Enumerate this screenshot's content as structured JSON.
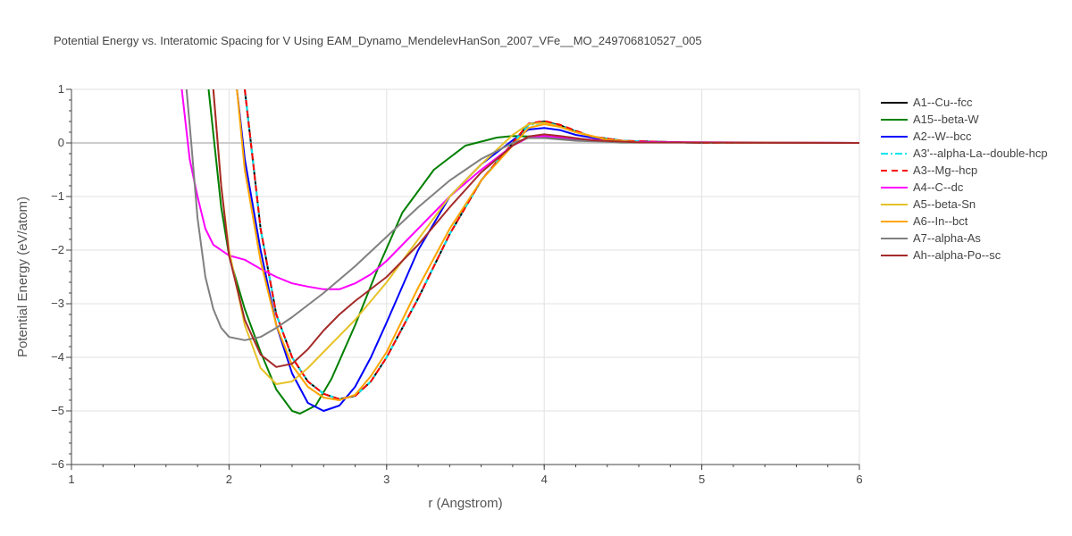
{
  "chart_data": {
    "type": "line",
    "title": "Potential Energy vs. Interatomic Spacing for V Using EAM_Dynamo_MendelevHanSon_2007_VFe__MO_249706810527_005",
    "xlabel": "r (Angstrom)",
    "ylabel": "Potential Energy (eV/atom)",
    "xlim": [
      1,
      6
    ],
    "ylim": [
      -6,
      1
    ],
    "xticks": [
      1,
      2,
      3,
      4,
      5,
      6
    ],
    "yticks": [
      -6,
      -5,
      -4,
      -3,
      -2,
      -1,
      0,
      1
    ],
    "xtick_labels": [
      "1",
      "2",
      "3",
      "4",
      "5",
      "6"
    ],
    "ytick_labels": [
      "−6",
      "−5",
      "−4",
      "−3",
      "−2",
      "−1",
      "0",
      "1"
    ],
    "grid": true,
    "legend_position": "right",
    "series": [
      {
        "name": "A1--Cu--fcc",
        "color": "#000000",
        "dash": "solid",
        "points": [
          [
            2.1,
            1.0
          ],
          [
            2.15,
            -0.3
          ],
          [
            2.2,
            -1.6
          ],
          [
            2.3,
            -3.2
          ],
          [
            2.4,
            -4.0
          ],
          [
            2.5,
            -4.45
          ],
          [
            2.6,
            -4.68
          ],
          [
            2.7,
            -4.78
          ],
          [
            2.8,
            -4.72
          ],
          [
            2.9,
            -4.45
          ],
          [
            3.0,
            -4.0
          ],
          [
            3.2,
            -2.9
          ],
          [
            3.4,
            -1.7
          ],
          [
            3.6,
            -0.7
          ],
          [
            3.8,
            0.0
          ],
          [
            3.9,
            0.35
          ],
          [
            4.0,
            0.4
          ],
          [
            4.1,
            0.33
          ],
          [
            4.2,
            0.22
          ],
          [
            4.3,
            0.12
          ],
          [
            4.5,
            0.04
          ],
          [
            5.0,
            0.0
          ],
          [
            6.0,
            0.0
          ]
        ]
      },
      {
        "name": "A15--beta-W",
        "color": "#008000",
        "dash": "solid",
        "points": [
          [
            1.87,
            1.0
          ],
          [
            1.95,
            -1.2
          ],
          [
            2.0,
            -2.1
          ],
          [
            2.1,
            -3.1
          ],
          [
            2.2,
            -3.9
          ],
          [
            2.3,
            -4.6
          ],
          [
            2.4,
            -5.0
          ],
          [
            2.45,
            -5.05
          ],
          [
            2.55,
            -4.9
          ],
          [
            2.65,
            -4.4
          ],
          [
            2.8,
            -3.4
          ],
          [
            2.95,
            -2.3
          ],
          [
            3.1,
            -1.3
          ],
          [
            3.3,
            -0.5
          ],
          [
            3.5,
            -0.05
          ],
          [
            3.7,
            0.1
          ],
          [
            3.8,
            0.13
          ],
          [
            3.9,
            0.12
          ],
          [
            4.0,
            0.1
          ],
          [
            4.2,
            0.05
          ],
          [
            4.5,
            0.01
          ],
          [
            6.0,
            0.0
          ]
        ]
      },
      {
        "name": "A2--W--bcc",
        "color": "#0000ff",
        "dash": "solid",
        "points": [
          [
            2.05,
            1.0
          ],
          [
            2.1,
            -0.3
          ],
          [
            2.2,
            -2.0
          ],
          [
            2.3,
            -3.4
          ],
          [
            2.4,
            -4.3
          ],
          [
            2.5,
            -4.85
          ],
          [
            2.6,
            -5.0
          ],
          [
            2.7,
            -4.9
          ],
          [
            2.8,
            -4.55
          ],
          [
            2.9,
            -4.0
          ],
          [
            3.0,
            -3.35
          ],
          [
            3.2,
            -2.0
          ],
          [
            3.4,
            -1.0
          ],
          [
            3.6,
            -0.4
          ],
          [
            3.8,
            0.05
          ],
          [
            3.9,
            0.25
          ],
          [
            4.0,
            0.28
          ],
          [
            4.1,
            0.24
          ],
          [
            4.2,
            0.15
          ],
          [
            4.4,
            0.05
          ],
          [
            4.6,
            0.01
          ],
          [
            6.0,
            0.0
          ]
        ]
      },
      {
        "name": "A3'--alpha-La--double-hcp",
        "color": "#00e5ee",
        "dash": "dashdot",
        "points": [
          [
            2.1,
            1.0
          ],
          [
            2.15,
            -0.3
          ],
          [
            2.2,
            -1.6
          ],
          [
            2.3,
            -3.2
          ],
          [
            2.4,
            -4.0
          ],
          [
            2.5,
            -4.45
          ],
          [
            2.6,
            -4.68
          ],
          [
            2.7,
            -4.78
          ],
          [
            2.8,
            -4.72
          ],
          [
            2.9,
            -4.45
          ],
          [
            3.0,
            -4.0
          ],
          [
            3.2,
            -2.9
          ],
          [
            3.4,
            -1.7
          ],
          [
            3.6,
            -0.7
          ],
          [
            3.8,
            0.0
          ],
          [
            3.9,
            0.33
          ],
          [
            4.0,
            0.38
          ],
          [
            4.1,
            0.32
          ],
          [
            4.2,
            0.22
          ],
          [
            4.3,
            0.12
          ],
          [
            4.5,
            0.04
          ],
          [
            5.0,
            0.0
          ],
          [
            6.0,
            0.0
          ]
        ]
      },
      {
        "name": "A3--Mg--hcp",
        "color": "#ff0000",
        "dash": "dash",
        "points": [
          [
            2.1,
            1.0
          ],
          [
            2.15,
            -0.3
          ],
          [
            2.2,
            -1.6
          ],
          [
            2.3,
            -3.2
          ],
          [
            2.4,
            -4.0
          ],
          [
            2.5,
            -4.45
          ],
          [
            2.6,
            -4.68
          ],
          [
            2.7,
            -4.78
          ],
          [
            2.8,
            -4.72
          ],
          [
            2.9,
            -4.45
          ],
          [
            3.0,
            -4.0
          ],
          [
            3.2,
            -2.9
          ],
          [
            3.4,
            -1.7
          ],
          [
            3.6,
            -0.7
          ],
          [
            3.8,
            0.0
          ],
          [
            3.9,
            0.36
          ],
          [
            4.0,
            0.41
          ],
          [
            4.1,
            0.34
          ],
          [
            4.2,
            0.23
          ],
          [
            4.3,
            0.12
          ],
          [
            4.5,
            0.04
          ],
          [
            5.0,
            0.0
          ],
          [
            6.0,
            0.0
          ]
        ]
      },
      {
        "name": "A4--C--dc",
        "color": "#ff00ff",
        "dash": "solid",
        "points": [
          [
            1.7,
            1.0
          ],
          [
            1.75,
            -0.3
          ],
          [
            1.8,
            -1.0
          ],
          [
            1.85,
            -1.6
          ],
          [
            1.9,
            -1.9
          ],
          [
            2.0,
            -2.1
          ],
          [
            2.1,
            -2.18
          ],
          [
            2.2,
            -2.35
          ],
          [
            2.3,
            -2.5
          ],
          [
            2.4,
            -2.62
          ],
          [
            2.5,
            -2.68
          ],
          [
            2.6,
            -2.73
          ],
          [
            2.7,
            -2.73
          ],
          [
            2.8,
            -2.62
          ],
          [
            2.9,
            -2.45
          ],
          [
            3.0,
            -2.2
          ],
          [
            3.2,
            -1.6
          ],
          [
            3.4,
            -1.0
          ],
          [
            3.6,
            -0.5
          ],
          [
            3.8,
            -0.05
          ],
          [
            3.9,
            0.1
          ],
          [
            4.0,
            0.13
          ],
          [
            4.2,
            0.08
          ],
          [
            4.5,
            0.02
          ],
          [
            6.0,
            0.0
          ]
        ]
      },
      {
        "name": "A5--beta-Sn",
        "color": "#e6c228",
        "dash": "solid",
        "points": [
          [
            1.9,
            1.0
          ],
          [
            1.95,
            -0.8
          ],
          [
            2.0,
            -2.0
          ],
          [
            2.1,
            -3.4
          ],
          [
            2.2,
            -4.2
          ],
          [
            2.3,
            -4.5
          ],
          [
            2.4,
            -4.45
          ],
          [
            2.5,
            -4.2
          ],
          [
            2.6,
            -3.9
          ],
          [
            2.8,
            -3.3
          ],
          [
            3.0,
            -2.6
          ],
          [
            3.2,
            -1.8
          ],
          [
            3.4,
            -1.0
          ],
          [
            3.6,
            -0.4
          ],
          [
            3.8,
            0.15
          ],
          [
            3.9,
            0.35
          ],
          [
            4.0,
            0.38
          ],
          [
            4.1,
            0.3
          ],
          [
            4.2,
            0.2
          ],
          [
            4.4,
            0.06
          ],
          [
            4.6,
            0.01
          ],
          [
            6.0,
            0.0
          ]
        ]
      },
      {
        "name": "A6--In--bct",
        "color": "#ffa500",
        "dash": "solid",
        "points": [
          [
            2.05,
            1.0
          ],
          [
            2.1,
            -0.5
          ],
          [
            2.2,
            -2.2
          ],
          [
            2.3,
            -3.4
          ],
          [
            2.4,
            -4.15
          ],
          [
            2.5,
            -4.55
          ],
          [
            2.6,
            -4.75
          ],
          [
            2.7,
            -4.8
          ],
          [
            2.8,
            -4.7
          ],
          [
            2.9,
            -4.35
          ],
          [
            3.0,
            -3.9
          ],
          [
            3.2,
            -2.7
          ],
          [
            3.4,
            -1.6
          ],
          [
            3.6,
            -0.7
          ],
          [
            3.8,
            -0.05
          ],
          [
            3.9,
            0.28
          ],
          [
            4.0,
            0.35
          ],
          [
            4.1,
            0.3
          ],
          [
            4.2,
            0.2
          ],
          [
            4.4,
            0.06
          ],
          [
            4.6,
            0.01
          ],
          [
            6.0,
            0.0
          ]
        ]
      },
      {
        "name": "A7--alpha-As",
        "color": "#808080",
        "dash": "solid",
        "points": [
          [
            1.73,
            1.0
          ],
          [
            1.76,
            0.0
          ],
          [
            1.8,
            -1.4
          ],
          [
            1.85,
            -2.5
          ],
          [
            1.9,
            -3.1
          ],
          [
            1.95,
            -3.45
          ],
          [
            2.0,
            -3.62
          ],
          [
            2.1,
            -3.68
          ],
          [
            2.2,
            -3.62
          ],
          [
            2.3,
            -3.45
          ],
          [
            2.4,
            -3.25
          ],
          [
            2.6,
            -2.8
          ],
          [
            2.8,
            -2.3
          ],
          [
            3.0,
            -1.75
          ],
          [
            3.2,
            -1.2
          ],
          [
            3.4,
            -0.7
          ],
          [
            3.6,
            -0.3
          ],
          [
            3.8,
            0.0
          ],
          [
            3.9,
            0.09
          ],
          [
            4.0,
            0.09
          ],
          [
            4.2,
            0.04
          ],
          [
            4.5,
            0.01
          ],
          [
            6.0,
            0.0
          ]
        ]
      },
      {
        "name": "Ah--alpha-Po--sc",
        "color": "#a52a2a",
        "dash": "solid",
        "points": [
          [
            1.9,
            1.0
          ],
          [
            1.95,
            -0.8
          ],
          [
            2.0,
            -2.1
          ],
          [
            2.1,
            -3.3
          ],
          [
            2.2,
            -3.95
          ],
          [
            2.3,
            -4.18
          ],
          [
            2.4,
            -4.12
          ],
          [
            2.5,
            -3.85
          ],
          [
            2.6,
            -3.5
          ],
          [
            2.7,
            -3.2
          ],
          [
            2.8,
            -2.95
          ],
          [
            3.0,
            -2.5
          ],
          [
            3.2,
            -1.9
          ],
          [
            3.4,
            -1.2
          ],
          [
            3.6,
            -0.55
          ],
          [
            3.8,
            -0.05
          ],
          [
            3.9,
            0.12
          ],
          [
            4.0,
            0.16
          ],
          [
            4.1,
            0.13
          ],
          [
            4.3,
            0.05
          ],
          [
            4.6,
            0.01
          ],
          [
            6.0,
            0.0
          ]
        ]
      }
    ]
  }
}
